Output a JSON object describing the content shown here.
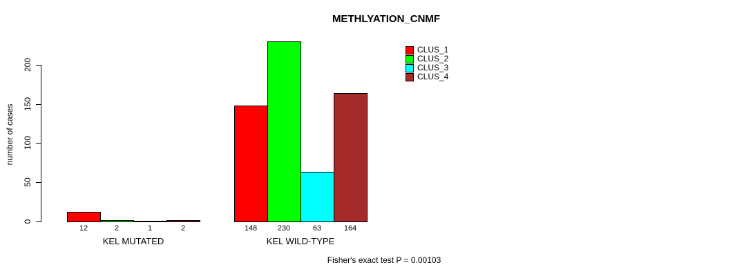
{
  "chart_data": {
    "type": "bar",
    "title": "METHLYATION_CNMF",
    "ylabel": "number of cases",
    "xlabel": "",
    "ylim": [
      0,
      235
    ],
    "yticks": [
      0,
      50,
      100,
      150,
      200
    ],
    "grid": false,
    "legend_position": "top-right",
    "categories": [
      "KEL MUTATED",
      "KEL WILD-TYPE"
    ],
    "series": [
      {
        "name": "CLUS_1",
        "color": "#ff0000",
        "values": [
          12,
          148
        ]
      },
      {
        "name": "CLUS_2",
        "color": "#00ff00",
        "values": [
          2,
          230
        ]
      },
      {
        "name": "CLUS_3",
        "color": "#00ffff",
        "values": [
          1,
          63
        ]
      },
      {
        "name": "CLUS_4",
        "color": "#a52a2a",
        "values": [
          2,
          164
        ]
      }
    ],
    "bar_value_labels": true,
    "annotation": "Fisher's exact test P = 0.00103"
  }
}
